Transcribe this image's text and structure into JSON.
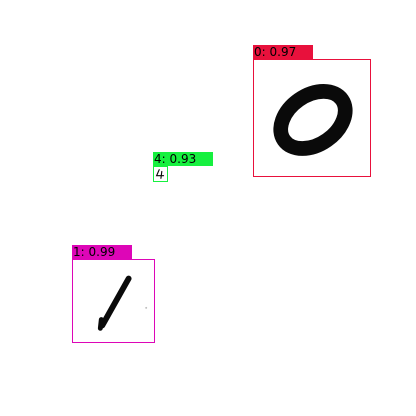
{
  "detections": [
    {
      "digit": "0",
      "score": "0.97",
      "label": "0: 0.97",
      "color": "#e8113c"
    },
    {
      "digit": "4",
      "score": "0.93",
      "label": "4: 0.93",
      "color": "#16f03f"
    },
    {
      "digit": "1",
      "score": "0.99",
      "label": "1: 0.99",
      "color": "#dd06b7"
    }
  ]
}
